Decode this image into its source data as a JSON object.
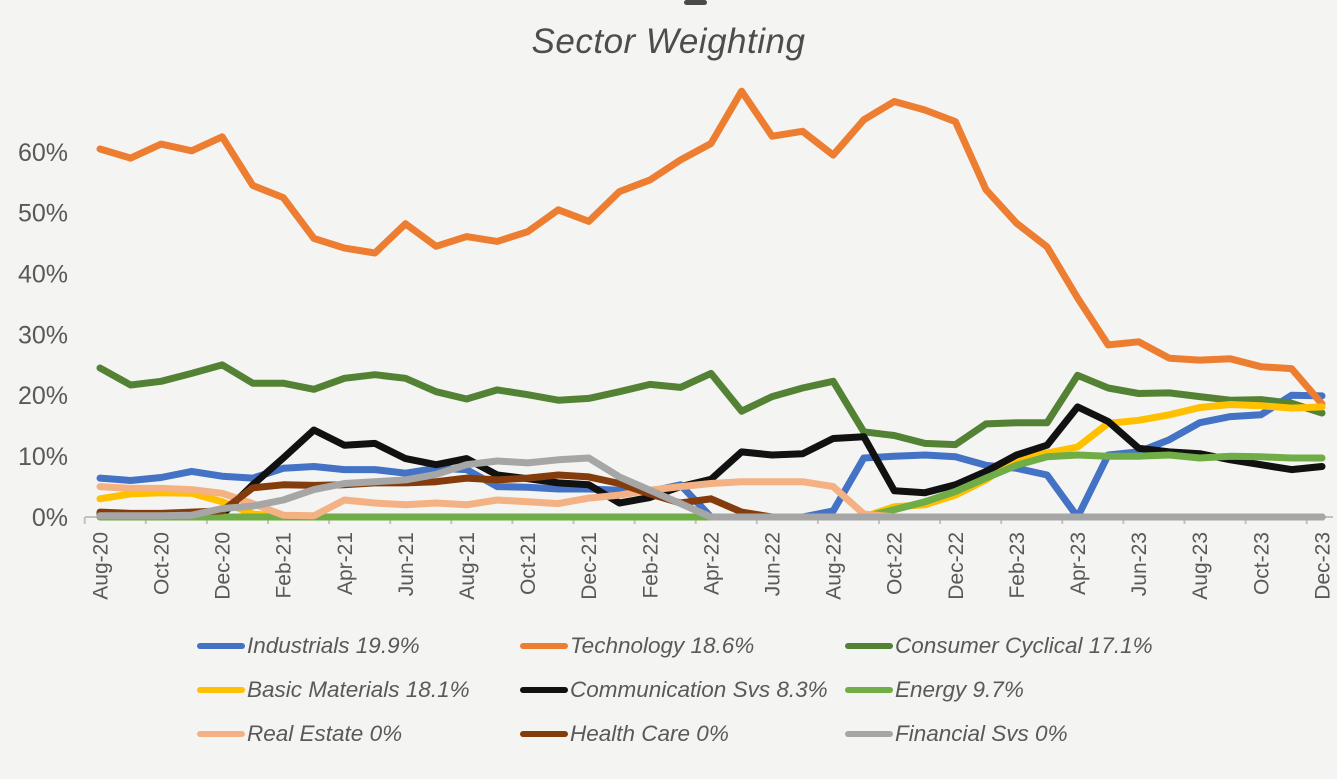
{
  "chart_data": {
    "type": "line",
    "title": "Sector Weighting",
    "xlabel": "",
    "ylabel": "",
    "ylim": [
      0,
      72
    ],
    "grid": false,
    "legend_position": "bottom",
    "x_tick_label_interval": 2,
    "y_ticks": [
      {
        "label": "0%",
        "value": 0
      },
      {
        "label": "10%",
        "value": 10
      },
      {
        "label": "20%",
        "value": 20
      },
      {
        "label": "30%",
        "value": 30
      },
      {
        "label": "40%",
        "value": 40
      },
      {
        "label": "50%",
        "value": 50
      },
      {
        "label": "60%",
        "value": 60
      }
    ],
    "x": [
      "Aug-20",
      "Sep-20",
      "Oct-20",
      "Nov-20",
      "Dec-20",
      "Jan-21",
      "Feb-21",
      "Mar-21",
      "Apr-21",
      "May-21",
      "Jun-21",
      "Jul-21",
      "Aug-21",
      "Sep-21",
      "Oct-21",
      "Nov-21",
      "Dec-21",
      "Jan-22",
      "Feb-22",
      "Mar-22",
      "Apr-22",
      "May-22",
      "Jun-22",
      "Jul-22",
      "Aug-22",
      "Sep-22",
      "Oct-22",
      "Nov-22",
      "Dec-22",
      "Jan-23",
      "Feb-23",
      "Mar-23",
      "Apr-23",
      "May-23",
      "Jun-23",
      "Jul-23",
      "Aug-23",
      "Sep-23",
      "Oct-23",
      "Nov-23",
      "Dec-23"
    ],
    "series": [
      {
        "name": "Industrials",
        "legend_label": "Industrials 19.9%",
        "color": "#4472C4",
        "values": [
          6.4,
          6,
          6.5,
          7.5,
          6.7,
          6.4,
          8,
          8.3,
          7.8,
          7.8,
          7.2,
          8,
          7.8,
          5,
          4.9,
          4.6,
          4.6,
          4.4,
          4.2,
          5.3,
          0,
          0,
          0,
          0,
          1,
          9.7,
          10,
          10.2,
          9.9,
          8.5,
          8,
          6.9,
          0,
          10.2,
          10.7,
          12.7,
          15.5,
          16.5,
          16.8,
          20,
          19.9
        ]
      },
      {
        "name": "Technology",
        "legend_label": "Technology 18.6%",
        "color": "#ED7D31",
        "values": [
          60.5,
          59,
          61.3,
          60.2,
          62.5,
          54.5,
          52.5,
          45.8,
          44.2,
          43.4,
          48.2,
          44.5,
          46.1,
          45.3,
          46.9,
          50.5,
          48.6,
          53.5,
          55.4,
          58.7,
          61.4,
          70,
          62.6,
          63.4,
          59.5,
          65.3,
          68.3,
          66.9,
          65,
          53.8,
          48.3,
          44.4,
          36,
          28.3,
          28.8,
          26.1,
          25.8,
          26,
          24.7,
          24.4,
          18.6
        ]
      },
      {
        "name": "Consumer Cyclical",
        "legend_label": "Consumer Cyclical 17.1%",
        "color": "#548235",
        "values": [
          24.5,
          21.7,
          22.3,
          23.6,
          25,
          22,
          22,
          21,
          22.8,
          23.4,
          22.8,
          20.6,
          19.4,
          20.9,
          20.1,
          19.2,
          19.5,
          20.6,
          21.8,
          21.3,
          23.6,
          17.4,
          19.8,
          21.2,
          22.3,
          14,
          13.4,
          12.1,
          11.9,
          15.3,
          15.5,
          15.5,
          23.3,
          21.2,
          20.3,
          20.4,
          19.8,
          19.2,
          19.3,
          18.7,
          17.1
        ]
      },
      {
        "name": "Basic Materials",
        "legend_label": "Basic Materials 18.1%",
        "color": "#FFC000",
        "values": [
          3,
          3.8,
          4,
          3.9,
          2.5,
          0.5,
          0.1,
          0,
          0,
          0,
          0,
          0,
          0,
          0,
          0,
          0,
          0,
          0,
          0,
          0,
          0,
          0,
          0,
          0,
          0,
          0,
          1.7,
          2,
          3.6,
          6.1,
          9.6,
          10.5,
          11.5,
          15.4,
          15.9,
          16.8,
          18,
          18.5,
          18.3,
          17.9,
          18.1
        ]
      },
      {
        "name": "Communication Svs",
        "legend_label": "Communication Svs 8.3%",
        "color": "#111111",
        "values": [
          0.5,
          0.5,
          0.5,
          0.4,
          0.4,
          5.3,
          9.7,
          14.3,
          11.8,
          12.1,
          9.6,
          8.6,
          9.6,
          6.9,
          6.3,
          5.6,
          5.3,
          2.3,
          3.2,
          5,
          6.2,
          10.7,
          10.2,
          10.4,
          12.9,
          13.2,
          4.3,
          4,
          5.3,
          7.5,
          10.2,
          11.8,
          18.1,
          15.7,
          11.3,
          10.7,
          10.4,
          9.4,
          8.6,
          7.8,
          8.3
        ]
      },
      {
        "name": "Energy",
        "legend_label": "Energy 9.7%",
        "color": "#70AD47",
        "values": [
          0,
          0,
          0,
          0,
          0,
          0,
          0,
          0,
          0,
          0,
          0,
          0,
          0,
          0,
          0,
          0,
          0,
          0,
          0,
          0,
          0,
          0,
          0,
          0,
          0,
          0,
          1.2,
          2.5,
          4.2,
          6.4,
          8.5,
          9.9,
          10.2,
          10,
          10,
          10.2,
          9.7,
          10,
          9.9,
          9.7,
          9.7
        ]
      },
      {
        "name": "Real Estate",
        "legend_label": "Real Estate 0%",
        "color": "#F4B183",
        "values": [
          5,
          4.7,
          4.7,
          4.5,
          3.9,
          2.2,
          0.3,
          0.2,
          2.8,
          2.3,
          2,
          2.3,
          2,
          2.8,
          2.5,
          2.2,
          3.1,
          3.6,
          4.4,
          5,
          5.5,
          5.8,
          5.8,
          5.8,
          5,
          0.5,
          0,
          0,
          0,
          0,
          0,
          0,
          0,
          0,
          0,
          0,
          0,
          0,
          0,
          0,
          0
        ]
      },
      {
        "name": "Health Care",
        "legend_label": "Health Care 0%",
        "color": "#843C0C",
        "values": [
          0.8,
          0.6,
          0.6,
          0.8,
          1,
          4.8,
          5.3,
          5.2,
          5.3,
          5.6,
          5.6,
          5.8,
          6.4,
          6.1,
          6.4,
          6.9,
          6.6,
          5.5,
          3.8,
          2.3,
          3,
          0.8,
          0,
          0,
          0,
          0,
          0,
          0,
          0,
          0,
          0,
          0,
          0,
          0,
          0,
          0,
          0,
          0,
          0,
          0,
          0
        ]
      },
      {
        "name": "Financial Svs",
        "legend_label": "Financial Svs 0%",
        "color": "#A6A6A6",
        "values": [
          0.2,
          0.2,
          0.2,
          0.3,
          1.4,
          1.8,
          2.8,
          4.5,
          5.5,
          5.8,
          6.1,
          7,
          8.6,
          9.2,
          8.9,
          9.4,
          9.7,
          6.6,
          4.4,
          2.2,
          0,
          0,
          0,
          0,
          0,
          0,
          0,
          0,
          0,
          0,
          0,
          0,
          0,
          0,
          0,
          0,
          0,
          0,
          0,
          0,
          0
        ]
      }
    ],
    "axis_color": "#c2c2c2",
    "label_color": "#595959"
  }
}
